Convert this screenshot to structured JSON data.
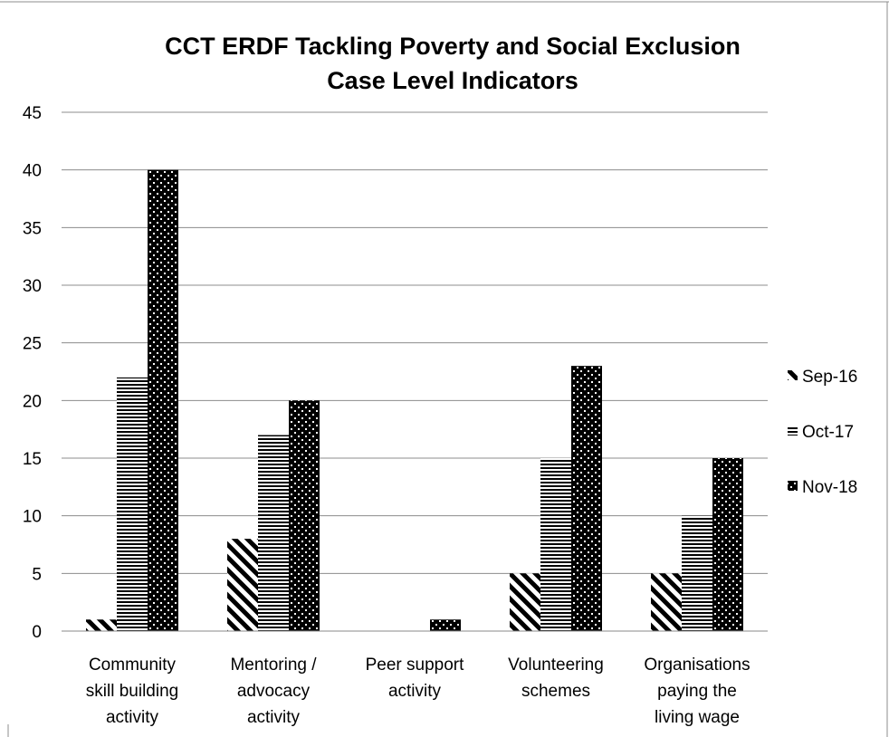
{
  "chart_data": {
    "type": "bar",
    "title": [
      "CCT ERDF Tackling Poverty and Social Exclusion",
      "Case Level Indicators"
    ],
    "categories": [
      [
        "Community",
        "skill building",
        "activity"
      ],
      [
        "Mentoring /",
        "advocacy",
        "activity"
      ],
      [
        "Peer support",
        "activity"
      ],
      [
        "Volunteering",
        "schemes"
      ],
      [
        "Organisations",
        "paying the",
        "living wage"
      ]
    ],
    "series": [
      {
        "name": "Sep-16",
        "values": [
          1,
          8,
          0,
          5,
          5
        ],
        "pattern": "diagonal"
      },
      {
        "name": "Oct-17",
        "values": [
          22,
          17,
          0,
          15,
          10
        ],
        "pattern": "horizontal"
      },
      {
        "name": "Nov-18",
        "values": [
          40,
          20,
          1,
          23,
          15
        ],
        "pattern": "dotted"
      }
    ],
    "ylim": [
      0,
      45
    ],
    "yticks": [
      0,
      5,
      10,
      15,
      20,
      25,
      30,
      35,
      40,
      45
    ],
    "grid": true,
    "legend": "right"
  }
}
